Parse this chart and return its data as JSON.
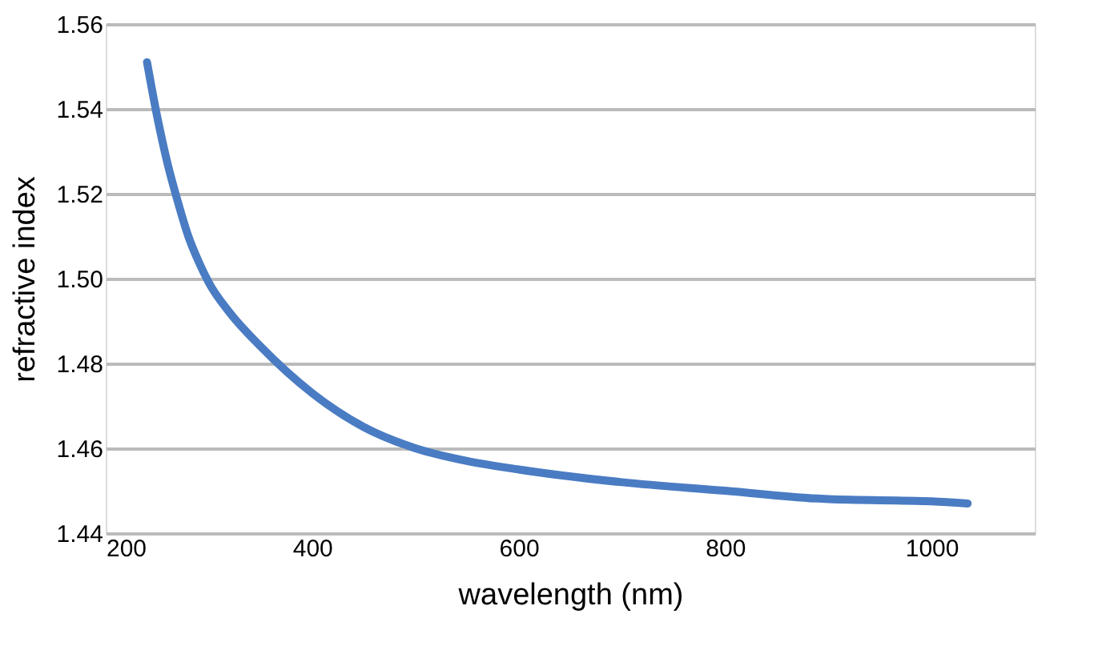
{
  "chart_data": {
    "type": "line",
    "xlabel": "wavelength (nm)",
    "ylabel": "refractive  index",
    "series": [
      {
        "color": "#4a7cc3",
        "x": [
          240,
          250,
          260,
          270,
          280,
          290,
          300,
          320,
          350,
          400,
          450,
          500,
          550,
          600,
          700,
          800,
          900,
          1000,
          1035
        ],
        "values": [
          1.551,
          1.538,
          1.527,
          1.518,
          1.51,
          1.504,
          1.499,
          1.492,
          1.484,
          1.473,
          1.465,
          1.46,
          1.457,
          1.455,
          1.452,
          1.45,
          1.448,
          1.4475,
          1.447
        ]
      }
    ],
    "xlim": [
      200,
      1100
    ],
    "xticks": [
      200,
      400,
      600,
      800,
      1000
    ],
    "ylim": [
      1.44,
      1.56
    ],
    "yticks": [
      {
        "value": 1.44,
        "label": "1.44"
      },
      {
        "value": 1.46,
        "label": "1.46"
      },
      {
        "value": 1.48,
        "label": "1.48"
      },
      {
        "value": 1.5,
        "label": "1.50"
      },
      {
        "value": 1.52,
        "label": "1.52"
      },
      {
        "value": 1.54,
        "label": "1.54"
      },
      {
        "value": 1.56,
        "label": "1.56"
      }
    ],
    "grid": "y",
    "marker": "none",
    "line_style": "solid"
  }
}
